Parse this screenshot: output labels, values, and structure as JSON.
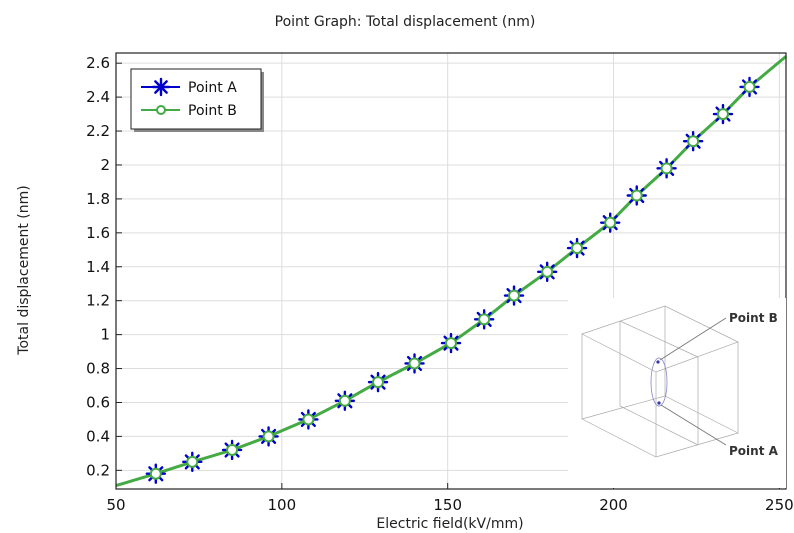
{
  "chart_data": {
    "type": "line",
    "title": "Point Graph: Total displacement (nm)",
    "xlabel": "Electric field(kV/mm)",
    "ylabel": "Total displacement (nm)",
    "xlim": [
      50,
      252
    ],
    "ylim": [
      0.09,
      2.66
    ],
    "xticks": [
      50,
      100,
      150,
      200,
      250
    ],
    "yticks": [
      0.2,
      0.4,
      0.6,
      0.8,
      1,
      1.2,
      1.4,
      1.6,
      1.8,
      2,
      2.2,
      2.4,
      2.6
    ],
    "grid": true,
    "legend_position": "top-left",
    "series": [
      {
        "name": "Point A",
        "color": "#0000cc",
        "marker": "asterisk",
        "x": [
          50,
          62,
          73,
          85,
          96,
          108,
          119,
          129,
          140,
          151,
          161,
          170,
          180,
          189,
          199,
          207,
          216,
          224,
          233,
          241,
          252
        ],
        "y": [
          0.11,
          0.18,
          0.25,
          0.32,
          0.4,
          0.5,
          0.61,
          0.72,
          0.83,
          0.95,
          1.09,
          1.23,
          1.37,
          1.51,
          1.66,
          1.82,
          1.98,
          2.14,
          2.3,
          2.46,
          2.64
        ]
      },
      {
        "name": "Point B",
        "color": "#44aa44",
        "marker": "circle",
        "x": [
          50,
          62,
          73,
          85,
          96,
          108,
          119,
          129,
          140,
          151,
          161,
          170,
          180,
          189,
          199,
          207,
          216,
          224,
          233,
          241,
          252
        ],
        "y": [
          0.11,
          0.18,
          0.25,
          0.32,
          0.4,
          0.5,
          0.61,
          0.72,
          0.83,
          0.95,
          1.09,
          1.23,
          1.37,
          1.51,
          1.66,
          1.82,
          1.98,
          2.14,
          2.3,
          2.46,
          2.64
        ]
      }
    ],
    "inset": {
      "labels": [
        "Point B",
        "Point A"
      ]
    }
  }
}
